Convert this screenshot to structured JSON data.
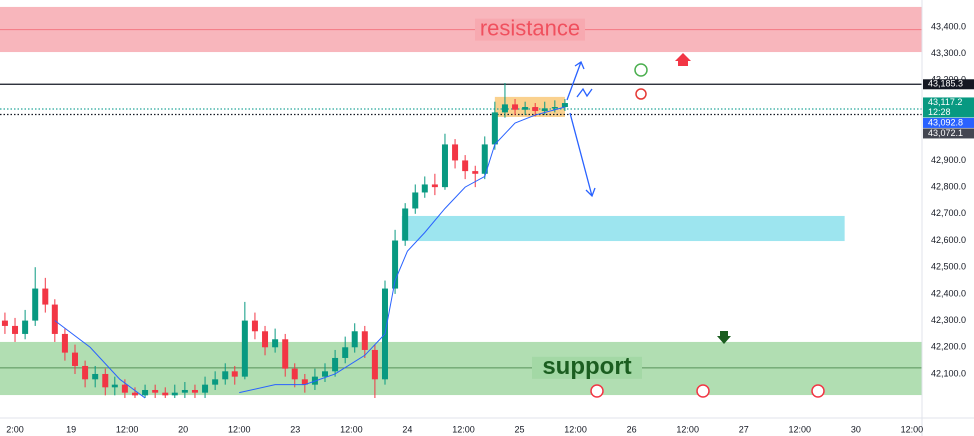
{
  "chart_data": {
    "type": "candlestick",
    "up_color": "#089981",
    "down_color": "#f23645",
    "grid": true,
    "xlim": [
      -0.268,
      16.18
    ],
    "ylim": [
      42010,
      43501
    ],
    "xticks": [
      {
        "value": 0,
        "label": "2:00"
      },
      {
        "value": 1,
        "label": "19"
      },
      {
        "value": 2,
        "label": "12:00"
      },
      {
        "value": 3,
        "label": "20"
      },
      {
        "value": 4,
        "label": "12:00"
      },
      {
        "value": 5,
        "label": "23"
      },
      {
        "value": 6,
        "label": "12:00"
      },
      {
        "value": 7,
        "label": "24"
      },
      {
        "value": 8,
        "label": "12:00"
      },
      {
        "value": 9,
        "label": "25"
      },
      {
        "value": 10,
        "label": "12:00"
      },
      {
        "value": 11,
        "label": "26"
      },
      {
        "value": 12,
        "label": "12:00"
      },
      {
        "value": 13,
        "label": "27"
      },
      {
        "value": 14,
        "label": "12:00"
      },
      {
        "value": 15,
        "label": "30"
      },
      {
        "value": 16,
        "label": "12:00"
      }
    ],
    "yticks": [
      {
        "value": 42100,
        "label": "42,100.0"
      },
      {
        "value": 42200,
        "label": "42,200.0"
      },
      {
        "value": 42300,
        "label": "42,300.0"
      },
      {
        "value": 42400,
        "label": "42,400.0"
      },
      {
        "value": 42500,
        "label": "42,500.0"
      },
      {
        "value": 42600,
        "label": "42,600.0"
      },
      {
        "value": 42700,
        "label": "42,700.0"
      },
      {
        "value": 42800,
        "label": "42,800.0"
      },
      {
        "value": 42900,
        "label": "42,900.0"
      },
      {
        "value": 43000,
        "label": "43,000.0"
      },
      {
        "value": 43100,
        "label": "43,100.0"
      },
      {
        "value": 43200,
        "label": "43,200.0"
      },
      {
        "value": 43300,
        "label": "43,300.0"
      },
      {
        "value": 43400,
        "label": "43,400.0"
      }
    ],
    "x": [
      -0.18,
      0,
      0.18,
      0.36,
      0.54,
      0.71,
      0.89,
      1.07,
      1.25,
      1.43,
      1.61,
      1.78,
      1.96,
      2.14,
      2.32,
      2.5,
      2.68,
      2.85,
      3.03,
      3.21,
      3.39,
      3.57,
      3.75,
      3.92,
      4.1,
      4.28,
      4.46,
      4.64,
      4.82,
      4.99,
      5.17,
      5.35,
      5.53,
      5.71,
      5.89,
      6.06,
      6.24,
      6.42,
      6.6,
      6.78,
      6.96,
      7.14,
      7.31,
      7.49,
      7.67,
      7.85,
      8.03,
      8.21,
      8.38,
      8.56,
      8.74,
      8.92,
      9.1,
      9.28,
      9.45,
      9.63,
      9.81
    ],
    "open": [
      42300,
      42280,
      42250,
      42300,
      42420,
      42360,
      42250,
      42180,
      42130,
      42080,
      42100,
      42050,
      42060,
      42030,
      42020,
      42040,
      42030,
      42020,
      42030,
      42040,
      42030,
      42060,
      42080,
      42110,
      42090,
      42300,
      42260,
      42200,
      42230,
      42120,
      42080,
      42060,
      42090,
      42110,
      42160,
      42200,
      42260,
      42190,
      42080,
      42420,
      42600,
      42720,
      42780,
      42810,
      42800,
      42960,
      42900,
      42860,
      42850,
      42960,
      43080,
      43110,
      43090,
      43100,
      43085,
      43095,
      43100
    ],
    "high": [
      42330,
      42310,
      42340,
      42500,
      42460,
      42380,
      42270,
      42210,
      42150,
      42130,
      42120,
      42090,
      42080,
      42050,
      42060,
      42060,
      42050,
      42060,
      42070,
      42060,
      42090,
      42110,
      42140,
      42130,
      42370,
      42330,
      42280,
      42270,
      42250,
      42140,
      42100,
      42120,
      42140,
      42190,
      42240,
      42290,
      42280,
      42210,
      42450,
      42640,
      42740,
      42810,
      42840,
      42850,
      43000,
      42980,
      42920,
      42880,
      42990,
      43120,
      43190,
      43130,
      43120,
      43115,
      43120,
      43125,
      43130
    ],
    "low": [
      42250,
      42220,
      42230,
      42280,
      42330,
      42220,
      42150,
      42100,
      42050,
      42050,
      42020,
      42020,
      42010,
      42010,
      42010,
      42010,
      42010,
      42010,
      42010,
      42010,
      42010,
      42040,
      42060,
      42060,
      42080,
      42230,
      42170,
      42180,
      42090,
      42050,
      42030,
      42040,
      42070,
      42090,
      42140,
      42180,
      42160,
      42010,
      42060,
      42400,
      42580,
      42700,
      42760,
      42770,
      42790,
      42870,
      42830,
      42800,
      42830,
      42940,
      43060,
      43070,
      43070,
      43065,
      43070,
      43080,
      43085
    ],
    "close": [
      42280,
      42250,
      42300,
      42420,
      42360,
      42250,
      42180,
      42130,
      42080,
      42100,
      42050,
      42060,
      42030,
      42020,
      42040,
      42030,
      42020,
      42030,
      42040,
      42030,
      42060,
      42080,
      42110,
      42090,
      42300,
      42260,
      42200,
      42230,
      42120,
      42080,
      42060,
      42090,
      42110,
      42160,
      42200,
      42260,
      42190,
      42080,
      42420,
      42600,
      42720,
      42780,
      42810,
      42800,
      42960,
      42900,
      42860,
      42850,
      42960,
      43080,
      43110,
      43090,
      43100,
      43085,
      43095,
      43100,
      43115
    ],
    "moving_average": {
      "color": "#2962ff",
      "x": [
        0.71,
        1.34,
        1.87,
        2.32,
        3.3,
        4.0,
        4.64,
        5.17,
        5.71,
        6.24,
        6.6,
        6.78,
        7.0,
        7.31,
        7.67,
        8.03,
        8.38,
        8.56,
        8.92,
        9.28,
        9.63,
        9.81
      ],
      "values": [
        42300,
        42200,
        42080,
        42010,
        null,
        42030,
        42060,
        42060,
        42100,
        42170,
        42250,
        42450,
        42560,
        42630,
        42720,
        42800,
        42840,
        42960,
        43040,
        43070,
        43090,
        43100
      ]
    },
    "zones": [
      {
        "label": "resistance",
        "color": "#f7a9b0",
        "text_color": "#f0505e",
        "ylim": [
          43306,
          43475
        ],
        "mid": 43390
      },
      {
        "label": "support",
        "color": "#a3d8a5",
        "text_color": "#1b5e20",
        "ylim": [
          42021,
          42220
        ],
        "mid": 42123
      },
      {
        "color": "#8ce0ec",
        "xlim": [
          6.9,
          14.8
        ],
        "ylim": [
          42598,
          42692
        ]
      },
      {
        "color": "#f9c97a",
        "xlim": [
          8.56,
          9.81
        ],
        "ylim": [
          43063,
          43138
        ]
      }
    ],
    "price_labels": [
      {
        "value": 43185.3,
        "label": "43,185.3",
        "color": "#131722",
        "line": "solid"
      },
      {
        "value": 43117.2,
        "label": "43,117.2",
        "color": "#089981",
        "countdown": "12:28"
      },
      {
        "value": 43092.8,
        "label": "43,092.8",
        "color": "#2962ff",
        "line": "dotted-teal"
      },
      {
        "value": 43072.1,
        "label": "43,072.1",
        "color": "#434651",
        "line": "dotted"
      }
    ]
  }
}
